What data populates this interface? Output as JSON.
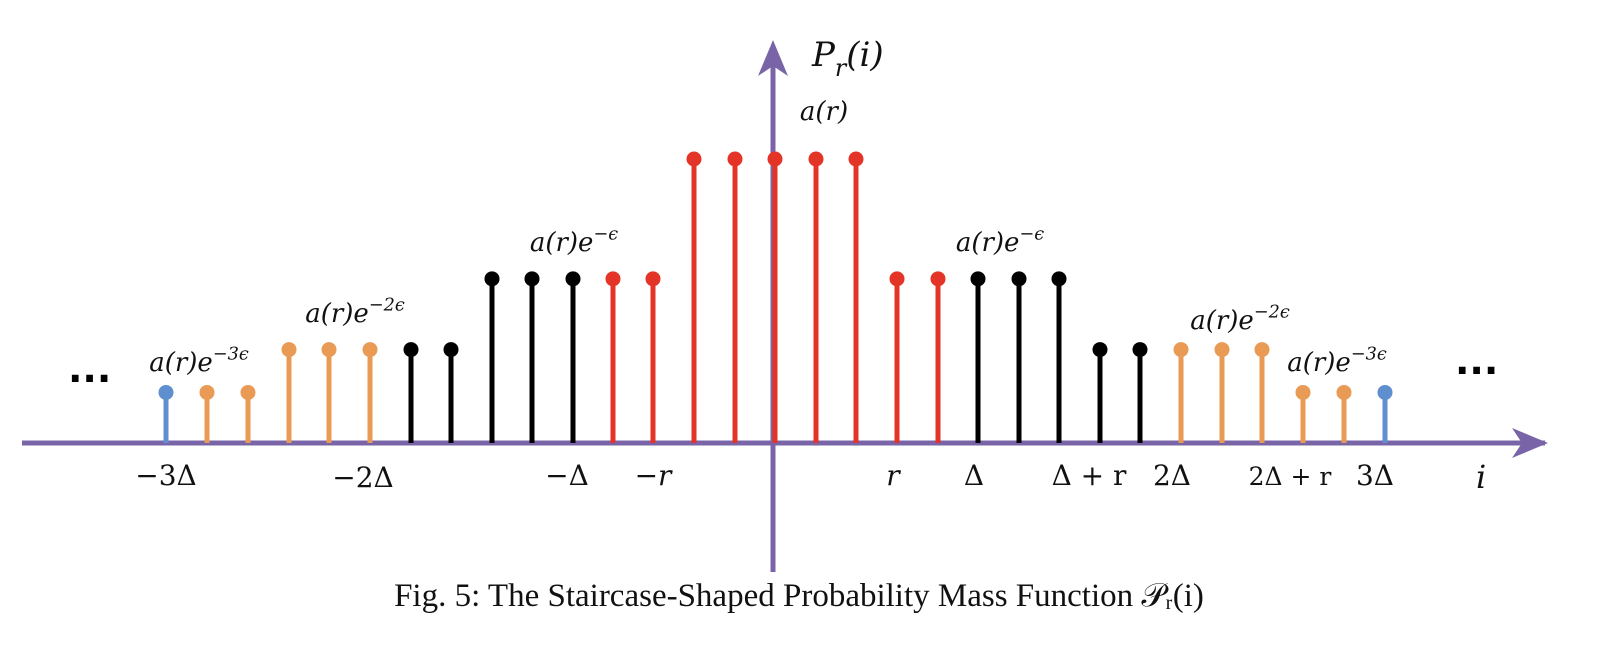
{
  "axis": {
    "y_label": "P_r(i)",
    "x_label": "i",
    "color": "#7a64a8"
  },
  "ellipsis": {
    "left": "...",
    "right": "..."
  },
  "tick_labels": [
    "−3Δ",
    "−2Δ",
    "−Δ",
    "−r",
    "r",
    "Δ",
    "Δ + r",
    "2Δ",
    "2Δ + r",
    "3Δ"
  ],
  "level_labels": [
    "a(r)",
    "a(r)e^{−ϵ}",
    "a(r)e^{−ϵ}",
    "a(r)e^{−2ϵ}",
    "a(r)e^{−2ϵ}",
    "a(r)e^{−3ϵ}",
    "a(r)e^{−3ϵ}"
  ],
  "colors": {
    "red": "#e33427",
    "black": "#000000",
    "orange": "#e99a55",
    "blue": "#5f8fcf"
  },
  "levels": {
    "a": 1.0,
    "a_e1": 0.578,
    "a_e2": 0.329,
    "a_e3": 0.178
  },
  "stems": [
    {
      "level": "a_e3",
      "color": "blue"
    },
    {
      "level": "a_e3",
      "color": "orange"
    },
    {
      "level": "a_e3",
      "color": "orange"
    },
    {
      "level": "a_e2",
      "color": "orange"
    },
    {
      "level": "a_e2",
      "color": "orange"
    },
    {
      "level": "a_e2",
      "color": "orange"
    },
    {
      "level": "a_e2",
      "color": "black"
    },
    {
      "level": "a_e2",
      "color": "black"
    },
    {
      "level": "a_e1",
      "color": "black"
    },
    {
      "level": "a_e1",
      "color": "black"
    },
    {
      "level": "a_e1",
      "color": "black"
    },
    {
      "level": "a_e1",
      "color": "red"
    },
    {
      "level": "a_e1",
      "color": "red"
    },
    {
      "level": "a",
      "color": "red"
    },
    {
      "level": "a",
      "color": "red"
    },
    {
      "level": "a",
      "color": "red"
    },
    {
      "level": "a",
      "color": "red"
    },
    {
      "level": "a",
      "color": "red"
    },
    {
      "level": "a_e1",
      "color": "red"
    },
    {
      "level": "a_e1",
      "color": "red"
    },
    {
      "level": "a_e1",
      "color": "black"
    },
    {
      "level": "a_e1",
      "color": "black"
    },
    {
      "level": "a_e1",
      "color": "black"
    },
    {
      "level": "a_e2",
      "color": "black"
    },
    {
      "level": "a_e2",
      "color": "black"
    },
    {
      "level": "a_e2",
      "color": "orange"
    },
    {
      "level": "a_e2",
      "color": "orange"
    },
    {
      "level": "a_e2",
      "color": "orange"
    },
    {
      "level": "a_e3",
      "color": "orange"
    },
    {
      "level": "a_e3",
      "color": "orange"
    },
    {
      "level": "a_e3",
      "color": "blue"
    }
  ],
  "caption": "Fig. 5: The Staircase-Shaped Probability Mass Function 𝒫ᵣ(i)"
}
